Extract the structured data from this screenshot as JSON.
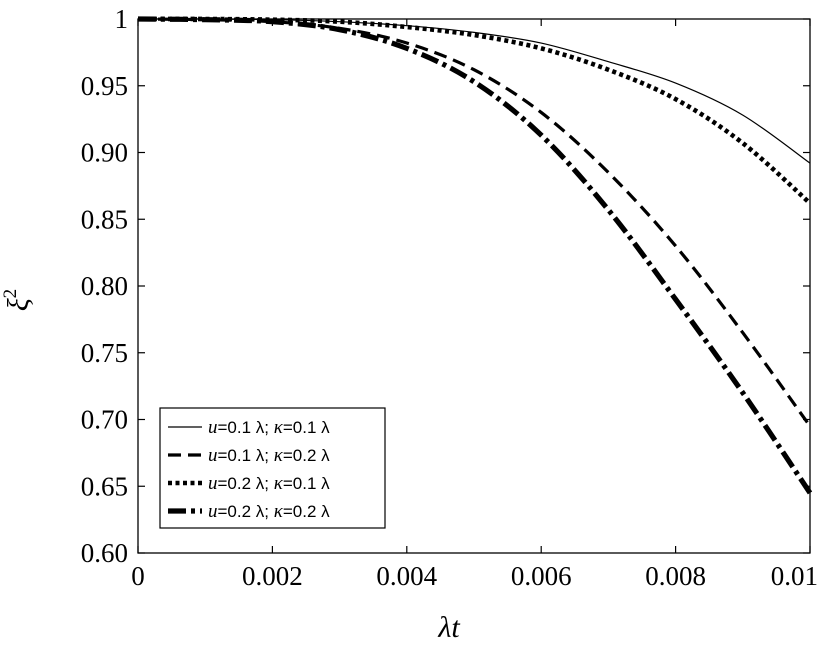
{
  "chart_data": {
    "type": "line",
    "xlabel": "λt",
    "ylabel_base": "ξ",
    "ylabel_sup": "2",
    "xlim": [
      0,
      0.01
    ],
    "ylim": [
      0.6,
      1.0
    ],
    "x_ticks": [
      0,
      0.002,
      0.004,
      0.006,
      0.008,
      0.01
    ],
    "x_tick_labels": [
      "0",
      "0.002",
      "0.004",
      "0.006",
      "0.008",
      "0.01"
    ],
    "y_ticks": [
      0.6,
      0.65,
      0.7,
      0.75,
      0.8,
      0.85,
      0.9,
      0.95,
      1.0
    ],
    "y_tick_labels": [
      "0.60",
      "0.65",
      "0.70",
      "0.75",
      "0.80",
      "0.85",
      "0.90",
      "0.95",
      "1"
    ],
    "grid": false,
    "legend_position": "bottom-left",
    "x": [
      0,
      0.001,
      0.002,
      0.003,
      0.004,
      0.005,
      0.006,
      0.007,
      0.008,
      0.009,
      0.01
    ],
    "series": [
      {
        "name": "u=0.1 λ; κ=0.1 λ",
        "legend": {
          "var1": "u",
          "val1": "=0.1 λ; ",
          "var2": "κ",
          "val2": "=0.1 λ"
        },
        "style": "solid-thin",
        "values": [
          1.0,
          1.0,
          0.9995,
          0.998,
          0.995,
          0.99,
          0.982,
          0.968,
          0.952,
          0.928,
          0.892
        ]
      },
      {
        "name": "u=0.1 λ; κ=0.2 λ",
        "legend": {
          "var1": "u",
          "val1": "=0.1 λ; ",
          "var2": "κ",
          "val2": "=0.2 λ"
        },
        "style": "dashed",
        "values": [
          1.0,
          0.9995,
          0.998,
          0.993,
          0.982,
          0.962,
          0.93,
          0.885,
          0.83,
          0.765,
          0.695
        ]
      },
      {
        "name": "u=0.2 λ; κ=0.1 λ",
        "legend": {
          "var1": "u",
          "val1": "=0.2 λ; ",
          "var2": "κ",
          "val2": "=0.1 λ"
        },
        "style": "dotted",
        "values": [
          1.0,
          1.0,
          0.9995,
          0.998,
          0.994,
          0.988,
          0.978,
          0.962,
          0.94,
          0.907,
          0.862
        ]
      },
      {
        "name": "u=0.2 λ; κ=0.2 λ",
        "legend": {
          "var1": "u",
          "val1": "=0.2 λ; ",
          "var2": "κ",
          "val2": "=0.2 λ"
        },
        "style": "dash-dot-thick",
        "values": [
          1.0,
          0.9995,
          0.998,
          0.992,
          0.978,
          0.953,
          0.913,
          0.857,
          0.79,
          0.72,
          0.645
        ]
      }
    ]
  }
}
